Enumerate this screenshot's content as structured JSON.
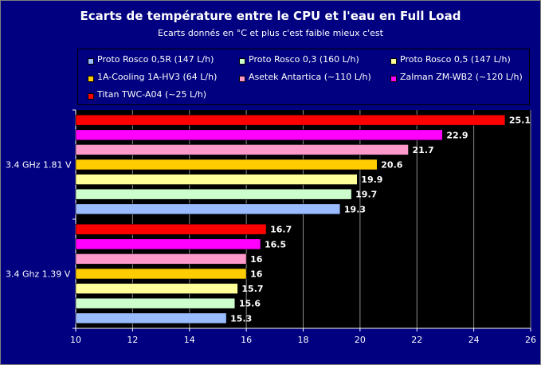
{
  "chart_data": {
    "type": "bar",
    "orientation": "horizontal",
    "title": "Ecarts de température entre le CPU et l'eau en Full Load",
    "subtitle": "Ecarts donnés en °C et plus c'est faible mieux c'est",
    "xlim": [
      10,
      26
    ],
    "x_ticks": [
      "10",
      "12",
      "14",
      "16",
      "18",
      "20",
      "22",
      "24",
      "26"
    ],
    "categories": [
      "3.4 GHz 1.81 V",
      "3.4 Ghz 1.39 V"
    ],
    "legend_position": "top",
    "grid": true,
    "series": [
      {
        "name": "Proto Rosco 0,5R  (147 L/h)",
        "color": "#99bbff",
        "values": [
          19.3,
          15.3
        ],
        "labels": [
          "19.3",
          "15.3"
        ]
      },
      {
        "name": "Proto Rosco 0,3  (160 L/h)",
        "color": "#ccffcc",
        "values": [
          19.7,
          15.6
        ],
        "labels": [
          "19.7",
          "15.6"
        ]
      },
      {
        "name": "Proto Rosco 0,5  (147 L/h)",
        "color": "#ffff99",
        "values": [
          19.9,
          15.7
        ],
        "labels": [
          "19.9",
          "15.7"
        ]
      },
      {
        "name": "1A-Cooling 1A-HV3 (64 L/h)",
        "color": "#ffcc00",
        "values": [
          20.6,
          16
        ],
        "labels": [
          "20.6",
          "16"
        ]
      },
      {
        "name": "Asetek Antartica  (~110 L/h)",
        "color": "#ff99cc",
        "values": [
          21.7,
          16
        ],
        "labels": [
          "21.7",
          "16"
        ]
      },
      {
        "name": "Zalman ZM-WB2 (~120 L/h)",
        "color": "#ff00ff",
        "values": [
          22.9,
          16.5
        ],
        "labels": [
          "22.9",
          "16.5"
        ]
      },
      {
        "name": "Titan TWC-A04 (~25 L/h)",
        "color": "#ff0000",
        "values": [
          25.1,
          16.7
        ],
        "labels": [
          "25.1",
          "16.7"
        ]
      }
    ]
  }
}
